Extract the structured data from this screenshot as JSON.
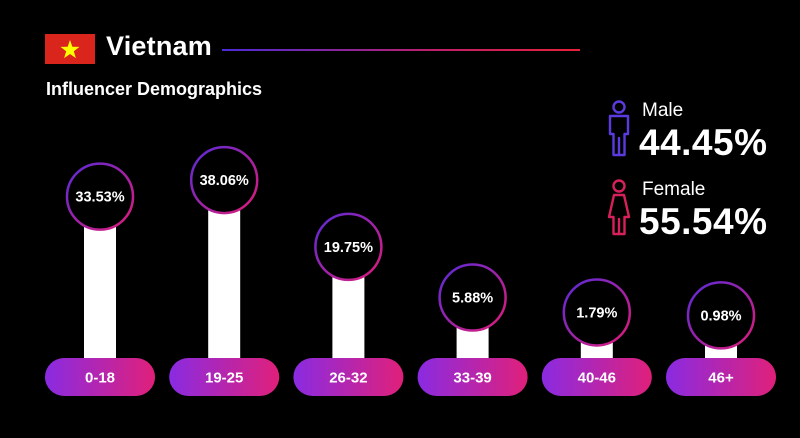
{
  "header": {
    "country": "Vietnam",
    "subtitle": "Influencer Demographics"
  },
  "gender": {
    "male": {
      "label": "Male",
      "value": "44.45%"
    },
    "female": {
      "label": "Female",
      "value": "55.54%"
    }
  },
  "colors": {
    "background": "#000000",
    "flag_red": "#da251d",
    "flag_star": "#ffff00",
    "pill_start": "#8a2be2",
    "pill_end": "#e0207a",
    "ring_start": "#6a2bd9",
    "ring_end": "#d81b7a",
    "bar": "#ffffff",
    "male_icon": "#5b3be0",
    "female_icon": "#d8205a"
  },
  "chart_data": {
    "type": "bar",
    "categories": [
      "0-18",
      "19-25",
      "26-32",
      "33-39",
      "40-46",
      "46+"
    ],
    "values": [
      33.53,
      38.06,
      19.75,
      5.88,
      1.79,
      0.98
    ],
    "value_labels": [
      "33.53%",
      "38.06%",
      "19.75%",
      "5.88%",
      "1.79%",
      "0.98%"
    ],
    "ylim": [
      0,
      40
    ],
    "grid": false
  }
}
